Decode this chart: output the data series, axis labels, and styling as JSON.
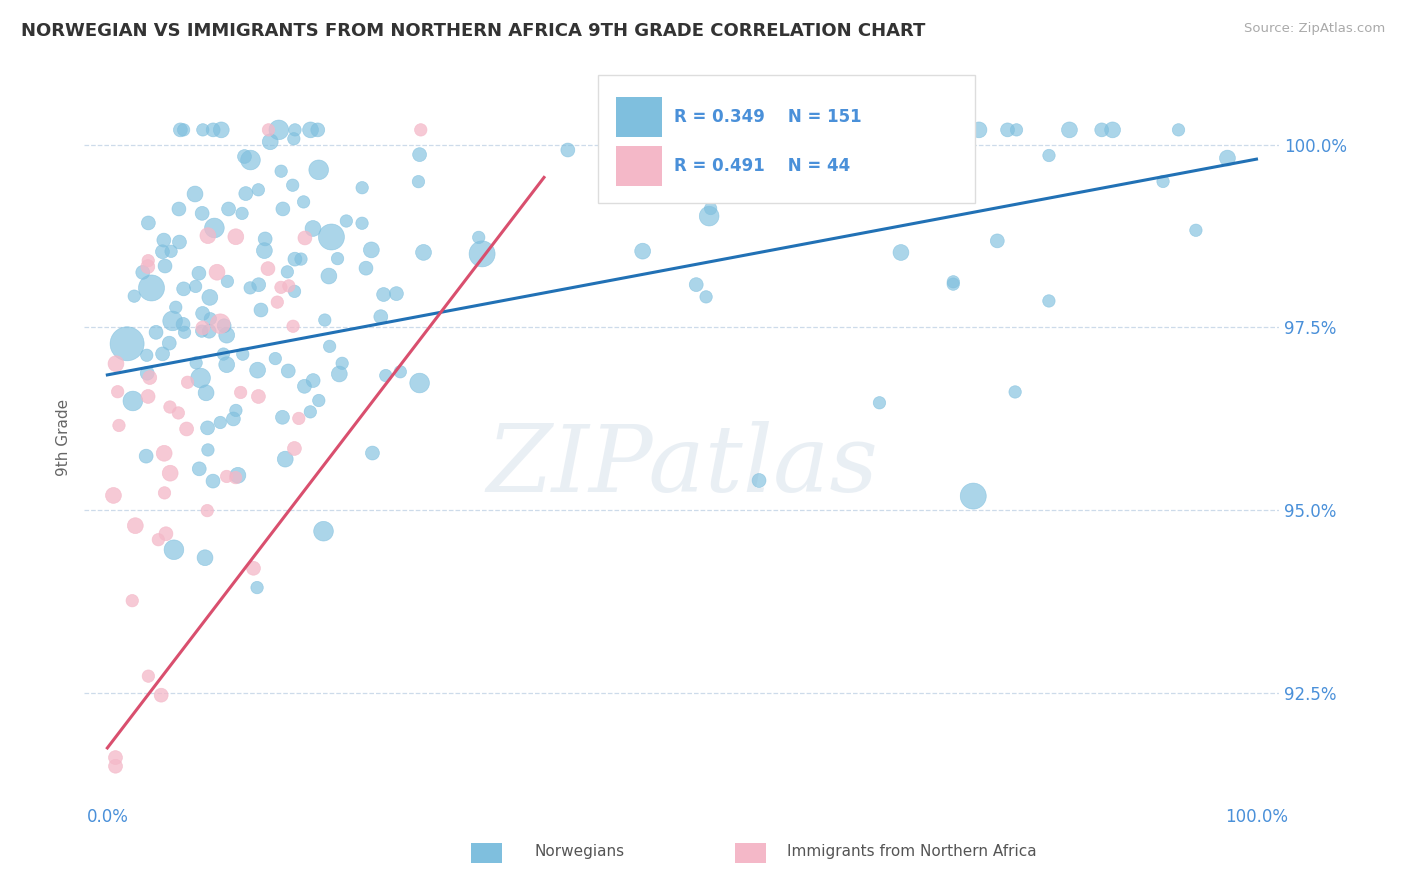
{
  "title": "NORWEGIAN VS IMMIGRANTS FROM NORTHERN AFRICA 9TH GRADE CORRELATION CHART",
  "source": "Source: ZipAtlas.com",
  "ylabel": "9th Grade",
  "blue_color": "#7fbfde",
  "pink_color": "#f4b8c8",
  "trend_blue": "#2171b5",
  "trend_pink": "#d94f6e",
  "tick_color": "#4a90d9",
  "grid_color": "#c8d8e8",
  "watermark": "ZIPatlas",
  "watermark_color": "#d0dce8",
  "xlim": [
    -0.02,
    1.02
  ],
  "ylim": [
    0.91,
    1.01
  ],
  "yticks": [
    0.925,
    0.95,
    0.975,
    1.0
  ],
  "ytick_labels": [
    "92.5%",
    "95.0%",
    "97.5%",
    "100.0%"
  ],
  "xtick_labels": [
    "0.0%",
    "100.0%"
  ],
  "xtick_vals": [
    0.0,
    1.0
  ],
  "blue_trend_x": [
    0.0,
    1.0
  ],
  "blue_trend_y": [
    0.9685,
    0.998
  ],
  "pink_trend_x": [
    0.0,
    0.38
  ],
  "pink_trend_y": [
    0.9175,
    0.9955
  ],
  "legend_r_blue": "R = 0.349",
  "legend_n_blue": "N = 151",
  "legend_r_pink": "R = 0.491",
  "legend_n_pink": "N = 44",
  "blue_seed": 42,
  "pink_seed": 7,
  "marker_size_blue": 120,
  "marker_size_pink": 100
}
